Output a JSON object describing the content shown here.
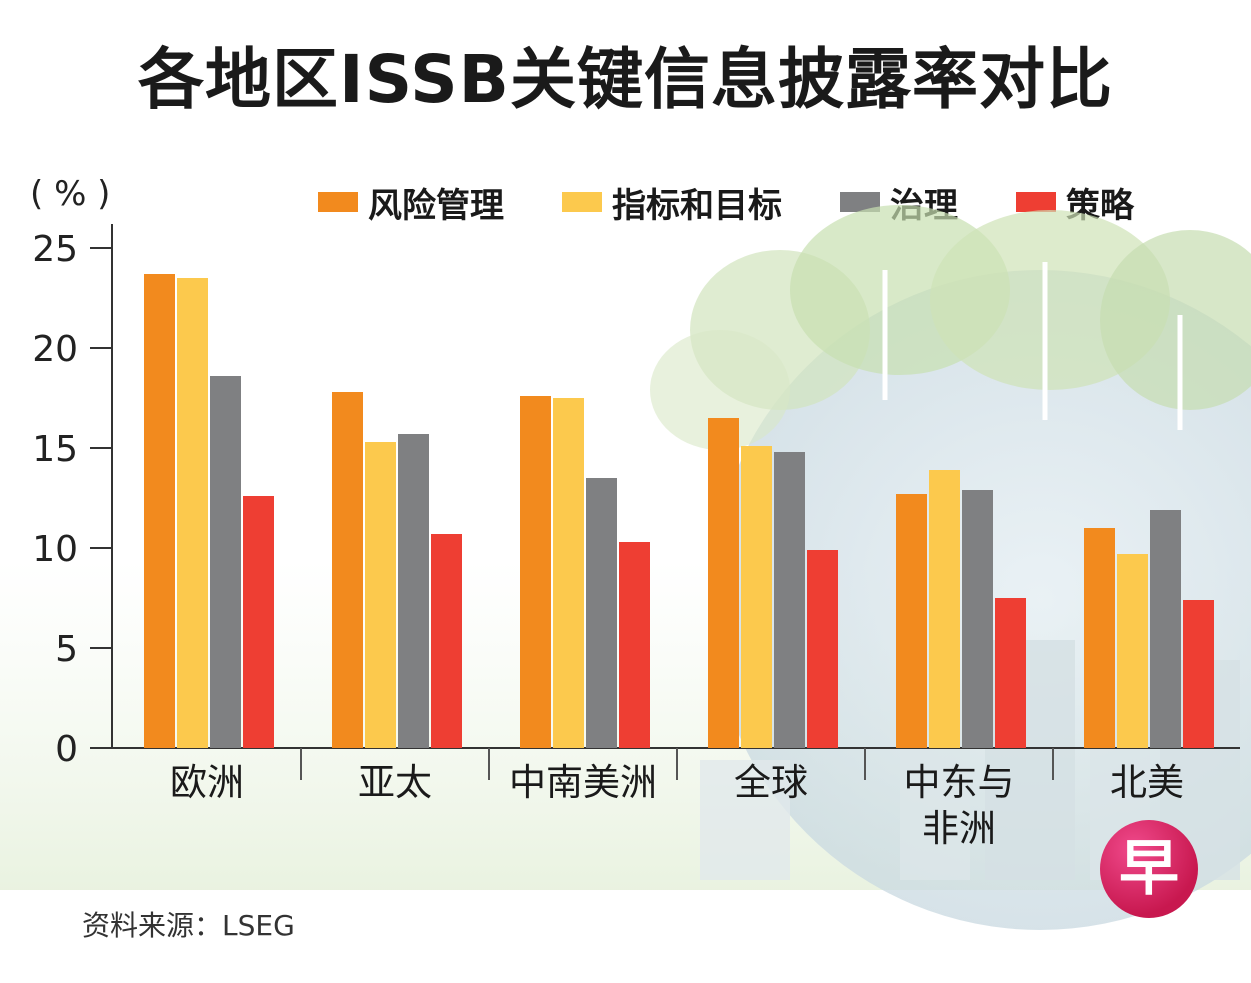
{
  "title": "各地区ISSB关键信息披露率对比",
  "unit_label": "( % )",
  "source": "资料来源：LSEG",
  "logo_text": "早",
  "chart_data": {
    "type": "bar",
    "title": "各地区ISSB关键信息披露率对比",
    "ylabel": "%",
    "ylim": [
      0,
      25
    ],
    "yticks": [
      0,
      5,
      10,
      15,
      20,
      25
    ],
    "categories": [
      "欧洲",
      "亚太",
      "中南美洲",
      "全球",
      "中东与非洲",
      "北美"
    ],
    "category_lines": [
      [
        "欧洲"
      ],
      [
        "亚太"
      ],
      [
        "中南美洲"
      ],
      [
        "全球"
      ],
      [
        "中东与",
        "非洲"
      ],
      [
        "北美"
      ]
    ],
    "legend_position": "top",
    "series": [
      {
        "name": "风险管理",
        "color": "#f28a1e",
        "values": [
          23.7,
          17.8,
          17.6,
          16.5,
          12.7,
          11.0
        ]
      },
      {
        "name": "指标和目标",
        "color": "#fcc94d",
        "values": [
          23.5,
          15.3,
          17.5,
          15.1,
          13.9,
          9.7
        ]
      },
      {
        "name": "治理",
        "color": "#7f8082",
        "values": [
          18.6,
          15.7,
          13.5,
          14.8,
          12.9,
          11.9
        ]
      },
      {
        "name": "策略",
        "color": "#ee3e33",
        "values": [
          12.6,
          10.7,
          10.3,
          9.9,
          7.5,
          7.4
        ]
      }
    ]
  }
}
